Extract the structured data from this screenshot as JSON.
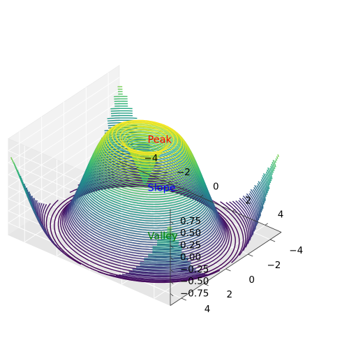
{
  "chart_data": {
    "type": "contour3d",
    "function": "sin(sqrt(x^2 + y^2))",
    "colormap": "viridis",
    "contour_levels": 50,
    "xlim": [
      -5,
      5
    ],
    "ylim": [
      -5,
      5
    ],
    "zlim": [
      -1,
      1
    ],
    "x_ticks": [
      -4,
      -2,
      0,
      2,
      4
    ],
    "y_ticks": [
      -4,
      -2,
      0,
      2,
      4
    ],
    "z_ticks": [
      0.75,
      0.5,
      0.25,
      0.0,
      -0.25,
      -0.5,
      -0.75
    ],
    "x_tick_labels": [
      "−4",
      "−2",
      "0",
      "2",
      "4"
    ],
    "y_tick_labels": [
      "−4",
      "−2",
      "0",
      "2",
      "4"
    ],
    "z_tick_labels": [
      "0.75",
      "0.50",
      "0.25",
      "0.00",
      "−0.25",
      "−0.50",
      "−0.75"
    ],
    "grid": true,
    "annotations": [
      {
        "text": "Peak",
        "x": 0,
        "y": 0,
        "z": 1.0,
        "color": "#ff0000"
      },
      {
        "text": "Slope",
        "x": 0,
        "y": 0,
        "z": 0.0,
        "color": "#0000ff"
      },
      {
        "text": "Valley",
        "x": 0,
        "y": 0,
        "z": -1.0,
        "color": "#008000"
      }
    ]
  }
}
